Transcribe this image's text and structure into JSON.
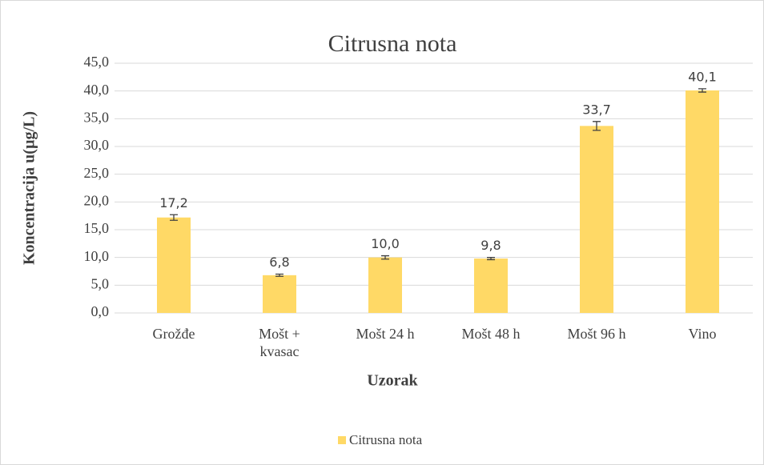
{
  "chart_data": {
    "type": "bar",
    "title": "Citrusna nota",
    "x_label": "Uzorak",
    "y_label": "Koncentracija u(µg/L)",
    "categories": [
      "Grožđe",
      "Mošt +\nkvasac",
      "Mošt 24 h",
      "Mošt 48 h",
      "Mošt 96 h",
      "Vino"
    ],
    "series": [
      {
        "name": "Citrusna nota",
        "color": "#ffd966",
        "values": [
          17.2,
          6.8,
          10.0,
          9.8,
          33.7,
          40.1
        ],
        "value_labels": [
          "17,2",
          "6,8",
          "10,0",
          "9,8",
          "33,7",
          "40,1"
        ],
        "errors": [
          0.5,
          0.2,
          0.3,
          0.2,
          0.8,
          0.3
        ]
      }
    ],
    "ylim": [
      0,
      45
    ],
    "yticks": [
      {
        "value": 0,
        "label": "0,0"
      },
      {
        "value": 5,
        "label": "5,0"
      },
      {
        "value": 10,
        "label": "10,0"
      },
      {
        "value": 15,
        "label": "15,0"
      },
      {
        "value": 20,
        "label": "20,0"
      },
      {
        "value": 25,
        "label": "25,0"
      },
      {
        "value": 30,
        "label": "30,0"
      },
      {
        "value": 35,
        "label": "35,0"
      },
      {
        "value": 40,
        "label": "40,0"
      },
      {
        "value": 45,
        "label": "45,0"
      }
    ],
    "grid": true,
    "legend": "bottom"
  }
}
